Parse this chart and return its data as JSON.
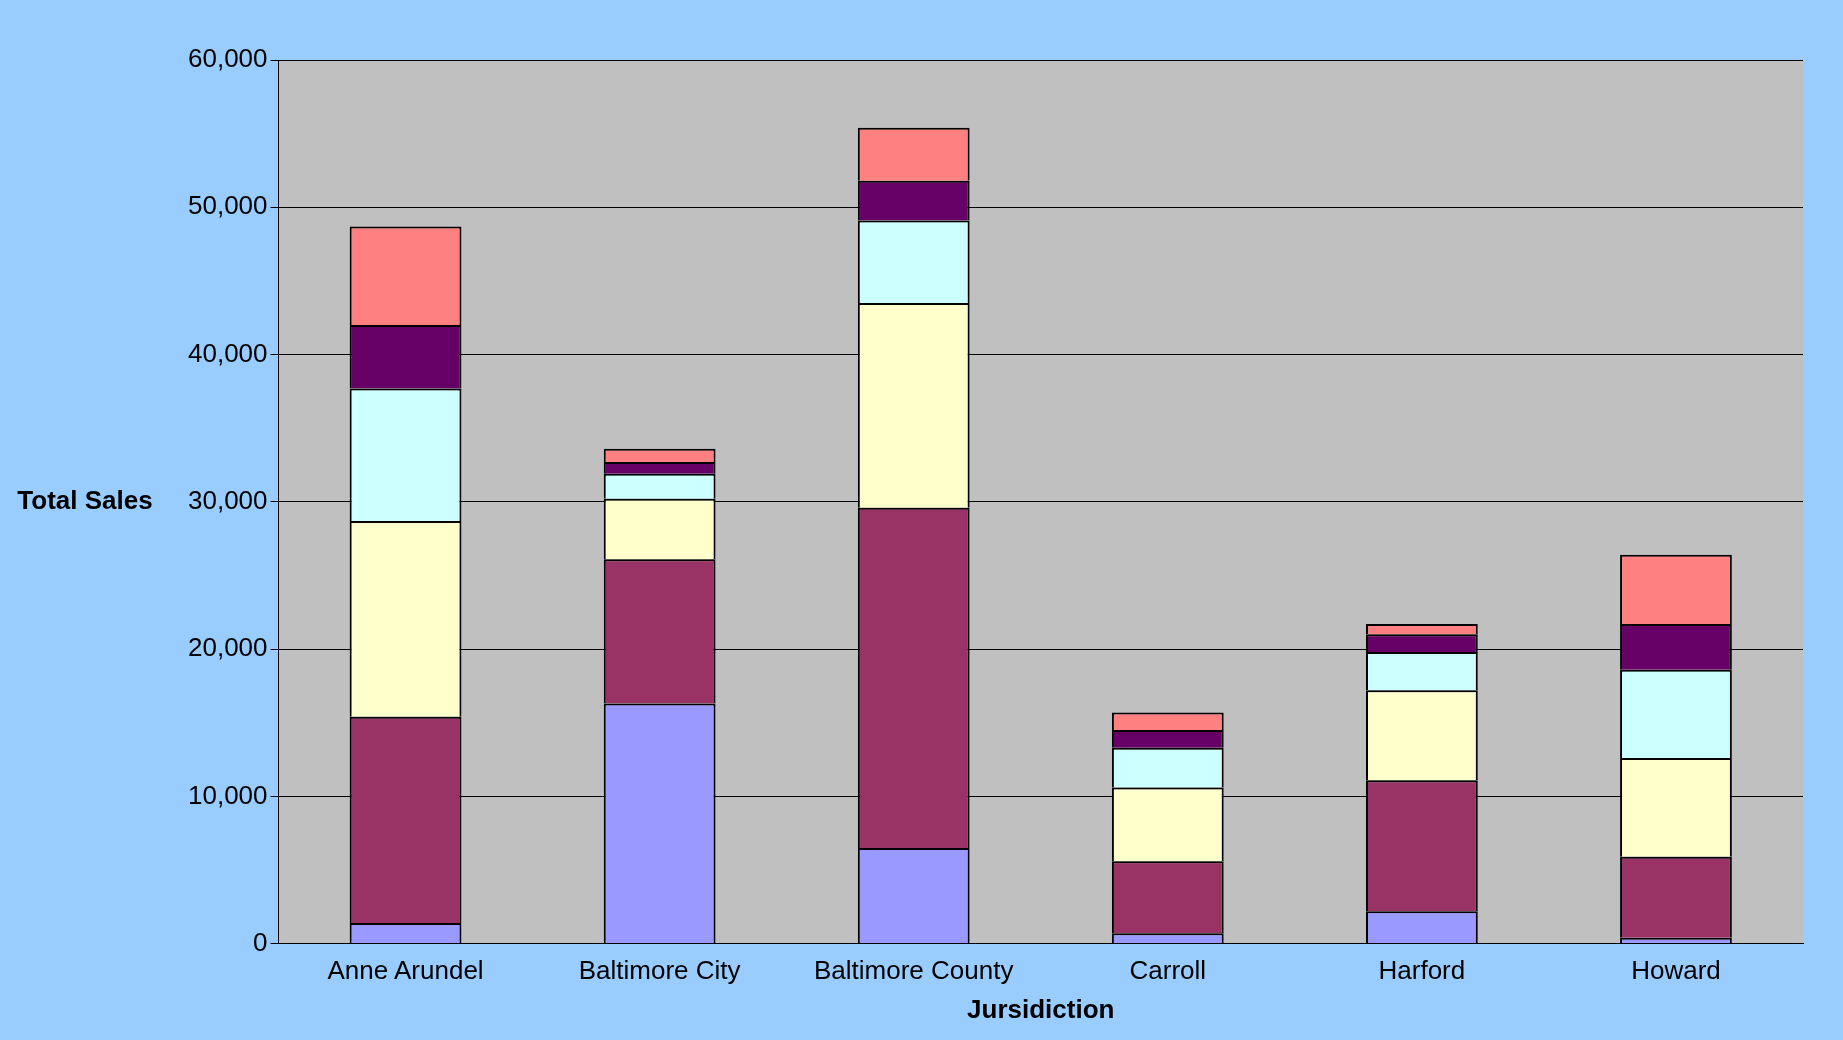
{
  "chart_data": {
    "type": "bar",
    "stacked": true,
    "xlabel": "Jursidiction",
    "ylabel": "Total Sales",
    "categories": [
      "Anne Arundel",
      "Baltimore City",
      "Baltimore County",
      "Carroll",
      "Harford",
      "Howard"
    ],
    "series": [
      {
        "color": "#9999ff",
        "values": [
          1400,
          16300,
          6500,
          700,
          2200,
          400
        ]
      },
      {
        "color": "#993366",
        "values": [
          14000,
          9800,
          23100,
          4900,
          8900,
          5500
        ]
      },
      {
        "color": "#ffffcc",
        "values": [
          13300,
          4100,
          13900,
          5000,
          6100,
          6700
        ]
      },
      {
        "color": "#ccffff",
        "values": [
          9000,
          1700,
          5600,
          2700,
          2600,
          6000
        ]
      },
      {
        "color": "#660066",
        "values": [
          4300,
          800,
          2700,
          1200,
          1200,
          3100
        ]
      },
      {
        "color": "#ff8080",
        "values": [
          6700,
          900,
          3600,
          1200,
          700,
          4700
        ]
      }
    ],
    "ylim": [
      0,
      60000
    ],
    "yticks": [
      0,
      {
        "value": 10000,
        "label": "10,000"
      },
      {
        "value": 20000,
        "label": "20,000"
      },
      {
        "value": 30000,
        "label": "30,000"
      },
      {
        "value": 40000,
        "label": "40,000"
      },
      {
        "value": 50000,
        "label": "50,000"
      },
      {
        "value": 60000,
        "label": "60,000"
      }
    ],
    "grid": "y",
    "legend": false
  }
}
